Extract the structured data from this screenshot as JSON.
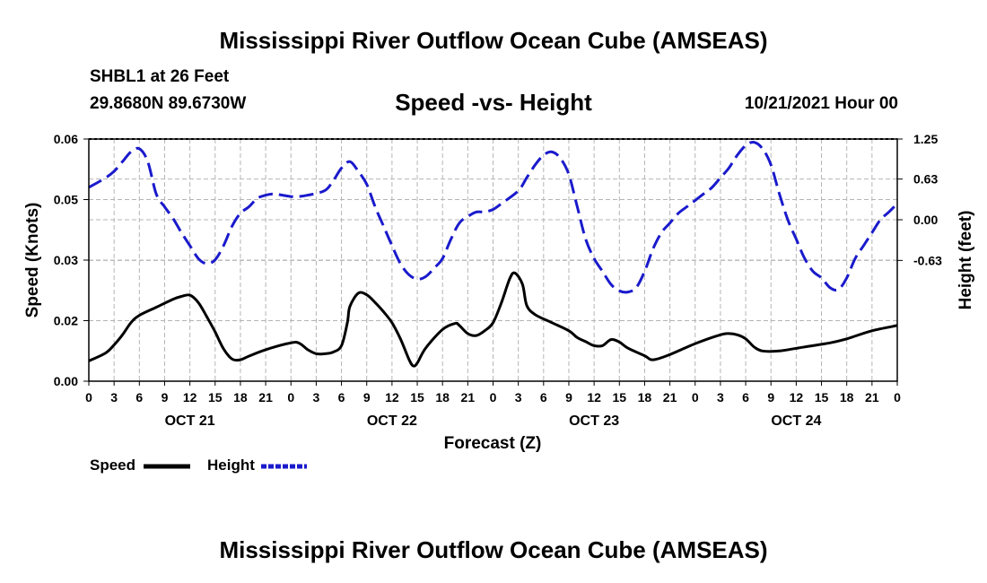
{
  "header": {
    "title": "Mississippi River Outflow Ocean Cube (AMSEAS)",
    "station": "SHBL1 at 26 Feet",
    "coords": "29.8680N  89.6730W",
    "subtitle": "Speed -vs- Height",
    "datetime": "10/21/2021 Hour 00"
  },
  "footer": {
    "title": "Mississippi River Outflow Ocean Cube (AMSEAS)"
  },
  "legend": {
    "speed_label": "Speed",
    "height_label": "Height"
  },
  "colors": {
    "speed": "#000000",
    "height": "#1a1acc",
    "grid": "#b4b4b4"
  },
  "chart_data": {
    "type": "line",
    "title": "Speed -vs- Height",
    "xlabel": "Forecast (Z)",
    "ylabel_left": "Speed (Knots)",
    "ylabel_right": "Height (feet)",
    "x_unit": "hours from 10/21/2021 00Z",
    "xlim": [
      0,
      96
    ],
    "ylim_left": [
      0,
      0.06
    ],
    "ylim_right": [
      -2.5,
      1.25
    ],
    "x_ticks": [
      0,
      3,
      6,
      9,
      12,
      15,
      18,
      21,
      24,
      27,
      30,
      33,
      36,
      39,
      42,
      45,
      48,
      51,
      54,
      57,
      60,
      63,
      66,
      69,
      72,
      75,
      78,
      81,
      84,
      87,
      90,
      93,
      96
    ],
    "x_tick_labels": [
      "0",
      "3",
      "6",
      "9",
      "12",
      "15",
      "18",
      "21",
      "0",
      "3",
      "6",
      "9",
      "12",
      "15",
      "18",
      "21",
      "0",
      "3",
      "6",
      "9",
      "12",
      "15",
      "18",
      "21",
      "0",
      "3",
      "6",
      "9",
      "12",
      "15",
      "18",
      "21",
      "0"
    ],
    "day_labels": [
      {
        "x": 12,
        "label": "OCT 21"
      },
      {
        "x": 36,
        "label": "OCT 22"
      },
      {
        "x": 60,
        "label": "OCT 23"
      },
      {
        "x": 84,
        "label": "OCT 24"
      }
    ],
    "y_left_ticks": [
      0,
      0.015,
      0.03,
      0.045,
      0.06
    ],
    "y_left_tick_labels": [
      "0.00",
      "0.02",
      "0.03",
      "0.05",
      "0.06"
    ],
    "y_right_ticks": [
      -0.63,
      0,
      0.63,
      1.25
    ],
    "y_right_tick_labels": [
      "-0.63",
      "0.00",
      "0.63",
      "1.25"
    ],
    "series": [
      {
        "name": "Speed",
        "axis": "left",
        "style": "solid",
        "points": [
          [
            0,
            0.005
          ],
          [
            2,
            0.007
          ],
          [
            3,
            0.009
          ],
          [
            4,
            0.0115
          ],
          [
            5,
            0.0145
          ],
          [
            6,
            0.0163
          ],
          [
            8,
            0.0183
          ],
          [
            10,
            0.0203
          ],
          [
            11,
            0.021
          ],
          [
            12,
            0.0213
          ],
          [
            13,
            0.0195
          ],
          [
            14,
            0.016
          ],
          [
            15,
            0.0122
          ],
          [
            16,
            0.008
          ],
          [
            17,
            0.0055
          ],
          [
            18,
            0.0053
          ],
          [
            19,
            0.0062
          ],
          [
            21,
            0.0078
          ],
          [
            24,
            0.0095
          ],
          [
            25,
            0.0094
          ],
          [
            26,
            0.0078
          ],
          [
            27,
            0.0068
          ],
          [
            28,
            0.0068
          ],
          [
            29,
            0.0072
          ],
          [
            30,
            0.0088
          ],
          [
            30.7,
            0.0145
          ],
          [
            31,
            0.0185
          ],
          [
            32,
            0.0218
          ],
          [
            33,
            0.0214
          ],
          [
            34,
            0.0195
          ],
          [
            35,
            0.0172
          ],
          [
            36,
            0.0145
          ],
          [
            37,
            0.0105
          ],
          [
            38,
            0.0055
          ],
          [
            38.5,
            0.0038
          ],
          [
            39,
            0.0045
          ],
          [
            40,
            0.0082
          ],
          [
            42,
            0.0128
          ],
          [
            43.5,
            0.0143
          ],
          [
            44,
            0.0138
          ],
          [
            45,
            0.0118
          ],
          [
            46,
            0.0113
          ],
          [
            47,
            0.0125
          ],
          [
            48,
            0.0145
          ],
          [
            49,
            0.0195
          ],
          [
            50,
            0.0255
          ],
          [
            50.6,
            0.0268
          ],
          [
            51.5,
            0.024
          ],
          [
            52,
            0.0188
          ],
          [
            53,
            0.0165
          ],
          [
            55,
            0.0145
          ],
          [
            57,
            0.0125
          ],
          [
            58,
            0.0108
          ],
          [
            59,
            0.0098
          ],
          [
            60,
            0.0088
          ],
          [
            61,
            0.0088
          ],
          [
            62,
            0.0103
          ],
          [
            63,
            0.0097
          ],
          [
            64,
            0.0082
          ],
          [
            66,
            0.0063
          ],
          [
            67,
            0.0053
          ],
          [
            69,
            0.0066
          ],
          [
            72,
            0.0093
          ],
          [
            75,
            0.0115
          ],
          [
            76,
            0.0118
          ],
          [
            77,
            0.0115
          ],
          [
            78,
            0.0105
          ],
          [
            79,
            0.0085
          ],
          [
            80,
            0.0075
          ],
          [
            82,
            0.0075
          ],
          [
            85,
            0.0085
          ],
          [
            88,
            0.0095
          ],
          [
            90,
            0.0105
          ],
          [
            93,
            0.0125
          ],
          [
            96,
            0.0138
          ]
        ]
      },
      {
        "name": "Height",
        "axis": "right",
        "style": "dashed",
        "points": [
          [
            0,
            0.5
          ],
          [
            2,
            0.65
          ],
          [
            3,
            0.75
          ],
          [
            4,
            0.9
          ],
          [
            5,
            1.05
          ],
          [
            6,
            1.1
          ],
          [
            7,
            0.9
          ],
          [
            8,
            0.4
          ],
          [
            9,
            0.2
          ],
          [
            10,
            0.02
          ],
          [
            11,
            -0.2
          ],
          [
            12,
            -0.4
          ],
          [
            13,
            -0.6
          ],
          [
            14,
            -0.68
          ],
          [
            15,
            -0.62
          ],
          [
            16,
            -0.4
          ],
          [
            17,
            -0.1
          ],
          [
            18,
            0.1
          ],
          [
            19,
            0.2
          ],
          [
            20,
            0.33
          ],
          [
            21,
            0.38
          ],
          [
            22,
            0.4
          ],
          [
            23,
            0.38
          ],
          [
            24,
            0.36
          ],
          [
            25,
            0.36
          ],
          [
            26,
            0.38
          ],
          [
            28,
            0.45
          ],
          [
            29,
            0.6
          ],
          [
            30,
            0.8
          ],
          [
            31,
            0.9
          ],
          [
            32,
            0.75
          ],
          [
            33,
            0.55
          ],
          [
            34,
            0.2
          ],
          [
            35,
            -0.1
          ],
          [
            36,
            -0.4
          ],
          [
            37,
            -0.68
          ],
          [
            38,
            -0.85
          ],
          [
            39,
            -0.92
          ],
          [
            40,
            -0.88
          ],
          [
            41,
            -0.75
          ],
          [
            42,
            -0.6
          ],
          [
            43,
            -0.3
          ],
          [
            44,
            -0.05
          ],
          [
            45,
            0.05
          ],
          [
            46,
            0.12
          ],
          [
            47,
            0.12
          ],
          [
            48,
            0.16
          ],
          [
            49,
            0.25
          ],
          [
            51,
            0.45
          ],
          [
            52,
            0.65
          ],
          [
            53,
            0.85
          ],
          [
            54,
            1.0
          ],
          [
            55,
            1.05
          ],
          [
            56,
            0.95
          ],
          [
            57,
            0.7
          ],
          [
            58,
            0.2
          ],
          [
            59,
            -0.3
          ],
          [
            60,
            -0.6
          ],
          [
            61,
            -0.8
          ],
          [
            62,
            -1.0
          ],
          [
            63,
            -1.1
          ],
          [
            64,
            -1.12
          ],
          [
            65,
            -1.05
          ],
          [
            66,
            -0.8
          ],
          [
            67,
            -0.45
          ],
          [
            68,
            -0.2
          ],
          [
            69,
            -0.05
          ],
          [
            70,
            0.1
          ],
          [
            71,
            0.2
          ],
          [
            72,
            0.3
          ],
          [
            73,
            0.4
          ],
          [
            74,
            0.5
          ],
          [
            75,
            0.65
          ],
          [
            76,
            0.8
          ],
          [
            77,
            1.0
          ],
          [
            78,
            1.15
          ],
          [
            79,
            1.2
          ],
          [
            80,
            1.1
          ],
          [
            81,
            0.85
          ],
          [
            82,
            0.4
          ],
          [
            83,
            0.0
          ],
          [
            84,
            -0.3
          ],
          [
            85,
            -0.6
          ],
          [
            86,
            -0.8
          ],
          [
            87,
            -0.9
          ],
          [
            88,
            -1.05
          ],
          [
            89,
            -1.08
          ],
          [
            90,
            -0.9
          ],
          [
            91,
            -0.6
          ],
          [
            92,
            -0.4
          ],
          [
            93,
            -0.2
          ],
          [
            94,
            0.0
          ],
          [
            95,
            0.12
          ],
          [
            96,
            0.25
          ]
        ]
      }
    ]
  }
}
